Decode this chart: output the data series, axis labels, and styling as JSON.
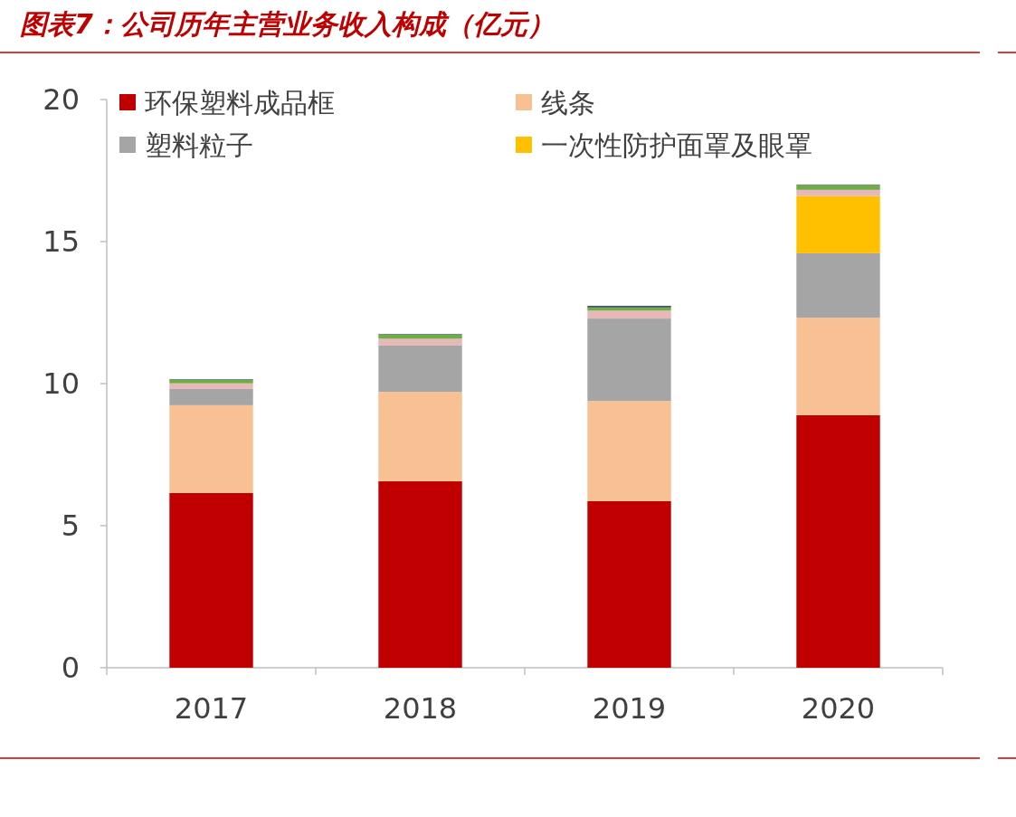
{
  "chart_data": {
    "type": "bar",
    "stacked": true,
    "title": "图表7：公司历年主营业务收入构成（亿元）",
    "categories": [
      "2017",
      "2018",
      "2019",
      "2020"
    ],
    "series": [
      {
        "name": "环保塑料成品框",
        "color": "#c00000",
        "values": [
          6.15,
          6.56,
          5.86,
          8.89
        ]
      },
      {
        "name": "线条",
        "color": "#f8c193",
        "values": [
          3.09,
          3.15,
          3.53,
          3.43
        ]
      },
      {
        "name": "塑料粒子",
        "color": "#a5a5a5",
        "values": [
          0.57,
          1.63,
          2.9,
          2.27
        ]
      },
      {
        "name": "一次性防护面罩及眼罩",
        "color": "#ffc000",
        "values": [
          null,
          null,
          null,
          2.01
        ]
      },
      {
        "color": "#e6b9b8",
        "values": [
          0.2,
          0.24,
          0.28,
          0.22
        ]
      },
      {
        "color": "#70ad47",
        "values": [
          0.13,
          0.15,
          0.11,
          0.17
        ]
      },
      {
        "color": "#44546a",
        "values": [
          0.02,
          0.02,
          0.06,
          0.02
        ]
      }
    ],
    "ylim": [
      0,
      20
    ],
    "yticks": [
      0,
      5,
      10,
      15,
      20
    ],
    "legend": "top left"
  }
}
